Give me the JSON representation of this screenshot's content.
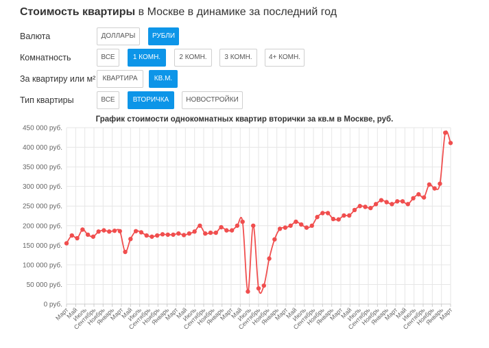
{
  "header": {
    "title_bold": "Стоимость квартиры",
    "title_rest": " в Москве в динамике за последний год"
  },
  "filters": [
    {
      "label": "Валюта",
      "options": [
        "Доллары",
        "Рубли"
      ],
      "active": 1
    },
    {
      "label": "Комнатность",
      "options": [
        "Все",
        "1 комн.",
        "2 комн.",
        "3 комн.",
        "4+ комн."
      ],
      "active": 1
    },
    {
      "label": "За квартиру или м²",
      "options": [
        "Квартира",
        "кв.м."
      ],
      "active": 1
    },
    {
      "label": "Тип квартиры",
      "options": [
        "Все",
        "Вторичка",
        "Новостройки"
      ],
      "active": 1
    }
  ],
  "colors": {
    "accent": "#0d95e8",
    "line": "#f04e4e",
    "grid": "#e6e6e6"
  },
  "chart_data": {
    "type": "line",
    "title": "График стоимости однокомнатных квартир вторички за кв.м в Москве, руб.",
    "xlabel": "",
    "ylabel": "",
    "ylim": [
      0,
      450000
    ],
    "y_ticks": [
      0,
      50000,
      100000,
      150000,
      200000,
      250000,
      300000,
      350000,
      400000,
      450000
    ],
    "y_tick_labels": [
      "0 руб.",
      "50 000 руб.",
      "100 000 руб.",
      "150 000 руб.",
      "200 000 руб.",
      "250 000 руб.",
      "300 000 руб.",
      "350 000 руб.",
      "400 000 руб.",
      "450 000 руб."
    ],
    "x_tick_labels": [
      "Март",
      "Май",
      "Июль",
      "Сентябрь",
      "Ноябрь",
      "Январь",
      "Март",
      "Май",
      "Июль",
      "Сентябрь",
      "Ноябрь",
      "Январь",
      "Март",
      "Май",
      "Июль",
      "Сентябрь",
      "Ноябрь",
      "Январь",
      "Март",
      "Май",
      "Июль",
      "Сентябрь",
      "Ноябрь",
      "Январь",
      "Март",
      "Май",
      "Июль",
      "Сентябрь",
      "Ноябрь",
      "Январь",
      "Март",
      "Май",
      "Июль",
      "Сентябрь",
      "Ноябрь",
      "Январь",
      "Март",
      "Май",
      "Июль",
      "Сентябрь",
      "Ноябрь",
      "Январь",
      "Март"
    ],
    "series": [
      {
        "name": "1 комн., вторичка, руб./кв.м",
        "values": [
          155000,
          175000,
          168000,
          190000,
          177000,
          172000,
          185000,
          188000,
          185000,
          187000,
          186000,
          133000,
          166000,
          186000,
          183000,
          175000,
          172000,
          175000,
          178000,
          177000,
          177000,
          180000,
          176000,
          180000,
          185000,
          200000,
          180000,
          182000,
          182000,
          196000,
          188000,
          188000,
          200000,
          210000,
          32000,
          200000,
          40000,
          47000,
          116000,
          165000,
          192000,
          195000,
          200000,
          210000,
          203000,
          195000,
          200000,
          222000,
          232000,
          232000,
          217000,
          216000,
          226000,
          226000,
          240000,
          250000,
          248000,
          245000,
          255000,
          265000,
          260000,
          255000,
          262000,
          262000,
          255000,
          270000,
          280000,
          272000,
          305000,
          295000,
          307000,
          437000,
          411000
        ]
      }
    ]
  }
}
